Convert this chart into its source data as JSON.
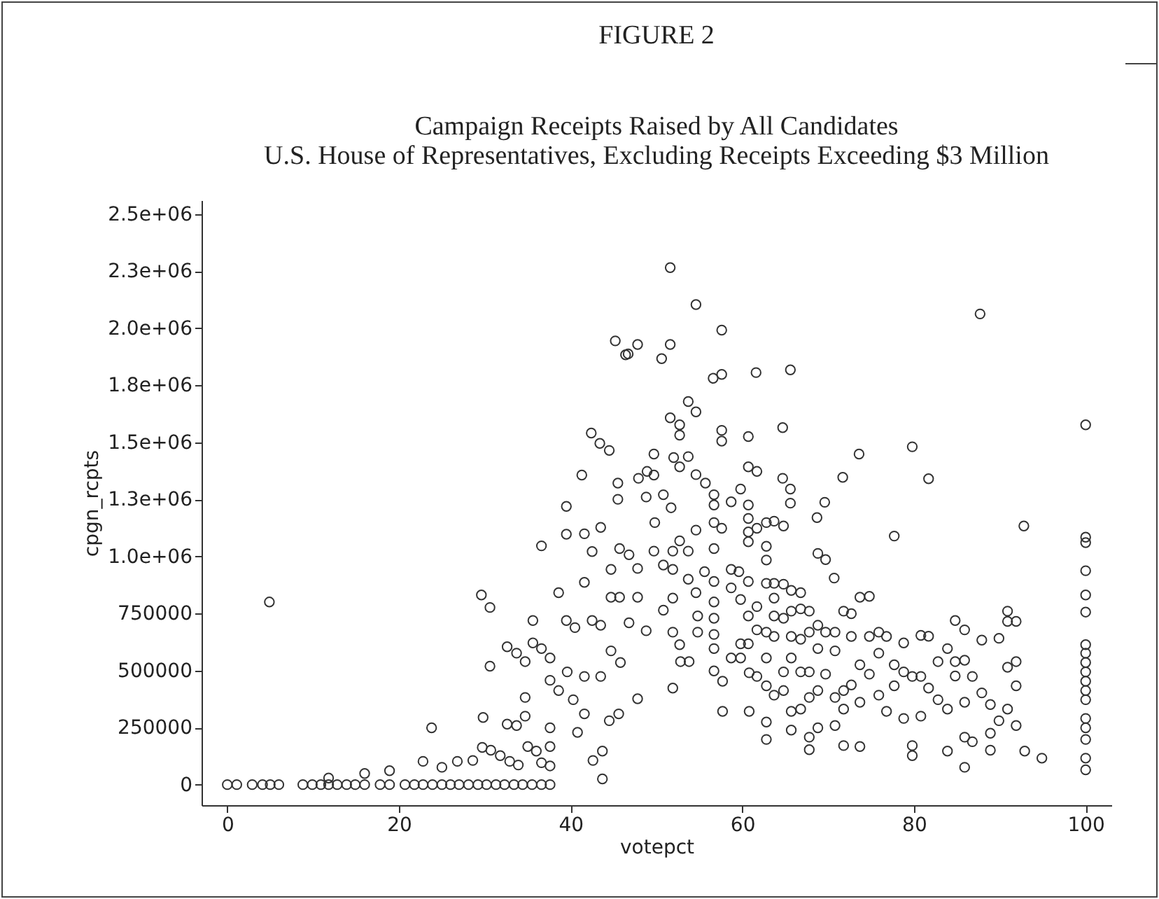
{
  "chart_data": {
    "type": "scatter",
    "title": "FIGURE 2",
    "subtitle": "Campaign Receipts Raised by All Candidates\nU.S. House of Representatives, Excluding Receipts Exceeding $3 Million",
    "xlabel": "votepct",
    "ylabel": "cpgn_rcpts",
    "color": "#333333",
    "marker": "circle",
    "grid": false,
    "xlim": [
      -3,
      103
    ],
    "ylim": [
      -90000,
      2560000
    ],
    "xticks": [
      0,
      20,
      40,
      60,
      80,
      100
    ],
    "yticks": [
      0,
      {
        "value": 250000,
        "label": "250000"
      },
      {
        "value": 500000,
        "label": "500000"
      },
      {
        "value": 750000,
        "label": "750000"
      },
      {
        "value": 1000000,
        "label": "1.0e+06"
      },
      {
        "value": 1250000,
        "label": "1.3e+06"
      },
      {
        "value": 1500000,
        "label": "1.5e+06"
      },
      {
        "value": 1750000,
        "label": "1.8e+06"
      },
      {
        "value": 2000000,
        "label": "2.0e+06"
      },
      {
        "value": 2250000,
        "label": "2.3e+06"
      },
      {
        "value": 2500000,
        "label": "2.5e+06"
      }
    ],
    "x": [
      0,
      1.1,
      2.9,
      4.1,
      5,
      6,
      8.8,
      9.9,
      10.9,
      11.8,
      12.8,
      13.9,
      14.9,
      16,
      17.8,
      18.9,
      20.7,
      21.8,
      22.8,
      23.9,
      25,
      26,
      27,
      28.1,
      29.2,
      30.2,
      31.3,
      32.3,
      33.4,
      34.4,
      35.5,
      36.6,
      37.6,
      11.8,
      16,
      18.9,
      22.8,
      25,
      26.8,
      28.6,
      29.7,
      30.7,
      31.8,
      32.9,
      33.9,
      35,
      36,
      36.6,
      37.6,
      4.9,
      23.8,
      29.6,
      30.6,
      29.8,
      30.6,
      32.6,
      33.7,
      34.7,
      35.6,
      35.6,
      36.6,
      37.6,
      32.6,
      33.7,
      34.7,
      34.7,
      36.6,
      37.6,
      37.6,
      37.6,
      38.6,
      39.5,
      39.5,
      39.5,
      40.5,
      38.6,
      39.6,
      40.3,
      40.8,
      41.6,
      41.6,
      41.3,
      41.6,
      42.4,
      43.4,
      44.5,
      43.5,
      42.5,
      41.6,
      42.5,
      43.5,
      43.5,
      43.7,
      43.7,
      42.6,
      44.7,
      44.7,
      45.5,
      45.5,
      45.2,
      46.4,
      44.7,
      45.8,
      45.6,
      44.5,
      51.6,
      54.6,
      57.6,
      46.7,
      47.8,
      51.6,
      50.6,
      56.6,
      57.6,
      61.6,
      65.6,
      87.7,
      53.7,
      54.6,
      51.6,
      52.7,
      52.7,
      57.6,
      57.6,
      60.7,
      64.7,
      100,
      49.7,
      52,
      53.7,
      52.7,
      73.6,
      79.8,
      71.7,
      81.7,
      47.9,
      48.9,
      49.7,
      48.8,
      50.8,
      51.7,
      54.6,
      55.7,
      56.7,
      56.7,
      58.7,
      59.8,
      60.7,
      61.7,
      64.7,
      65.6,
      65.6,
      60.7,
      69.6,
      68.7,
      49.8,
      52.7,
      54.6,
      56.7,
      57.6,
      60.7,
      60.7,
      62.8,
      63.7,
      64.8,
      61.7,
      77.7,
      92.8,
      100,
      100,
      100,
      100,
      100,
      100,
      100,
      100,
      100,
      100,
      100,
      100,
      100,
      100,
      100,
      100,
      100,
      45.7,
      46.8,
      47.8,
      45.7,
      47.8,
      46.8,
      48.8,
      47.8,
      49.7,
      50.8,
      51.9,
      51.9,
      51.9,
      50.8,
      51.9,
      52.7,
      51.9,
      52.8,
      53.8,
      53.7,
      53.7,
      54.6,
      54.8,
      54.8,
      56.7,
      55.6,
      56.7,
      56.7,
      56.7,
      56.7,
      56.7,
      56.7,
      57.7,
      57.7,
      58.7,
      58.7,
      58.7,
      59.6,
      59.8,
      59.8,
      59.8,
      60.7,
      60.7,
      60.7,
      60.7,
      60.8,
      60.8,
      61.7,
      61.7,
      61.7,
      62.8,
      62.8,
      62.8,
      62.8,
      62.8,
      62.8,
      62.8,
      62.8,
      63.7,
      63.7,
      63.7,
      63.7,
      63.7,
      64.8,
      64.8,
      64.8,
      64.8,
      65.7,
      65.7,
      65.7,
      65.7,
      65.7,
      65.7,
      66.8,
      66.8,
      66.8,
      66.8,
      66.8,
      67.8,
      67.8,
      67.8,
      67.8,
      67.8,
      67.8,
      68.8,
      68.8,
      69.7,
      68.8,
      68.8,
      68.8,
      69.7,
      69.7,
      70.7,
      70.8,
      70.8,
      70.8,
      70.8,
      71.8,
      71.8,
      71.8,
      71.8,
      72.7,
      72.7,
      72.7,
      73.7,
      74.8,
      73.7,
      73.7,
      73.7,
      74.8,
      74.8,
      75.9,
      75.9,
      75.9,
      76.8,
      76.8,
      77.7,
      77.7,
      78.8,
      78.8,
      78.8,
      79.8,
      79.8,
      79.8,
      80.8,
      81.7,
      80.8,
      80.8,
      81.7,
      82.8,
      82.8,
      83.9,
      83.9,
      83.9,
      84.8,
      84.8,
      84.8,
      85.9,
      85.9,
      85.9,
      85.9,
      85.9,
      86.8,
      86.8,
      87.9,
      87.9,
      88.9,
      88.9,
      88.9,
      89.9,
      89.9,
      90.9,
      90.9,
      90.9,
      90.9,
      91.9,
      91.9,
      91.9,
      91.9,
      92.9,
      94.9
    ],
    "values": [
      0,
      0,
      0,
      0,
      0,
      0,
      0,
      0,
      0,
      0,
      0,
      0,
      0,
      0,
      0,
      0,
      0,
      0,
      0,
      0,
      0,
      0,
      0,
      0,
      0,
      0,
      0,
      0,
      0,
      0,
      0,
      0,
      0,
      29000,
      49000,
      61000,
      102000,
      76000,
      102000,
      106000,
      163000,
      151000,
      127000,
      102000,
      86000,
      167000,
      147000,
      96000,
      82000,
      800000,
      249000,
      831000,
      776000,
      294000,
      519000,
      604000,
      576000,
      539000,
      719000,
      621000,
      596000,
      555000,
      265000,
      259000,
      382000,
      300000,
      1046000,
      457000,
      249000,
      167000,
      841000,
      1219000,
      1097000,
      719000,
      688000,
      412000,
      494000,
      372000,
      229000,
      474000,
      310000,
      1356000,
      1099000,
      1540000,
      1495000,
      1464000,
      1127000,
      1021000,
      886000,
      719000,
      698000,
      474000,
      25000,
      147000,
      106000,
      943000,
      821000,
      1321000,
      1250000,
      1944000,
      1883000,
      586000,
      535000,
      310000,
      280000,
      2265000,
      2103000,
      1991000,
      1887000,
      1928000,
      1928000,
      1866000,
      1780000,
      1797000,
      1805000,
      1817000,
      2062000,
      1678000,
      1633000,
      1607000,
      1576000,
      1531000,
      1552000,
      1505000,
      1525000,
      1564000,
      1576000,
      1448000,
      1433000,
      1437000,
      1392000,
      1448000,
      1480000,
      1346000,
      1340000,
      1342000,
      1372000,
      1356000,
      1260000,
      1270000,
      1213000,
      1358000,
      1321000,
      1270000,
      1225000,
      1239000,
      1295000,
      1392000,
      1372000,
      1342000,
      1295000,
      1233000,
      1225000,
      1237000,
      1170000,
      1148000,
      1068000,
      1115000,
      1148000,
      1123000,
      1166000,
      1107000,
      1148000,
      1154000,
      1133000,
      1123000,
      1089000,
      1133000,
      1084000,
      1060000,
      937000,
      831000,
      756000,
      613000,
      576000,
      535000,
      494000,
      453000,
      412000,
      372000,
      290000,
      249000,
      198000,
      116000,
      65000,
      1034000,
      1007000,
      947000,
      821000,
      821000,
      709000,
      674000,
      376000,
      1023000,
      962000,
      1023000,
      943000,
      817000,
      764000,
      668000,
      613000,
      423000,
      539000,
      539000,
      1023000,
      900000,
      841000,
      739000,
      668000,
      1034000,
      933000,
      890000,
      800000,
      729000,
      658000,
      596000,
      498000,
      453000,
      321000,
      943000,
      862000,
      555000,
      933000,
      811000,
      617000,
      555000,
      1064000,
      890000,
      739000,
      617000,
      490000,
      321000,
      780000,
      678000,
      474000,
      1044000,
      984000,
      882000,
      668000,
      555000,
      433000,
      274000,
      198000,
      882000,
      817000,
      739000,
      649000,
      392000,
      878000,
      729000,
      494000,
      412000,
      851000,
      760000,
      649000,
      555000,
      321000,
      239000,
      841000,
      770000,
      637000,
      494000,
      331000,
      760000,
      668000,
      494000,
      382000,
      208000,
      153000,
      698000,
      1013000,
      986000,
      596000,
      412000,
      249000,
      668000,
      484000,
      905000,
      668000,
      586000,
      382000,
      259000,
      760000,
      412000,
      331000,
      171000,
      749000,
      649000,
      437000,
      821000,
      825000,
      525000,
      361000,
      167000,
      649000,
      484000,
      668000,
      576000,
      392000,
      649000,
      321000,
      525000,
      433000,
      621000,
      494000,
      290000,
      474000,
      171000,
      127000,
      654000,
      650000,
      474000,
      300000,
      423000,
      539000,
      372000,
      596000,
      331000,
      147000,
      719000,
      539000,
      476000,
      678000,
      545000,
      361000,
      208000,
      76000,
      474000,
      188000,
      633000,
      402000,
      351000,
      225000,
      151000,
      641000,
      280000,
      760000,
      715000,
      514000,
      331000,
      715000,
      539000,
      433000,
      259000,
      147000,
      116000
    ]
  }
}
